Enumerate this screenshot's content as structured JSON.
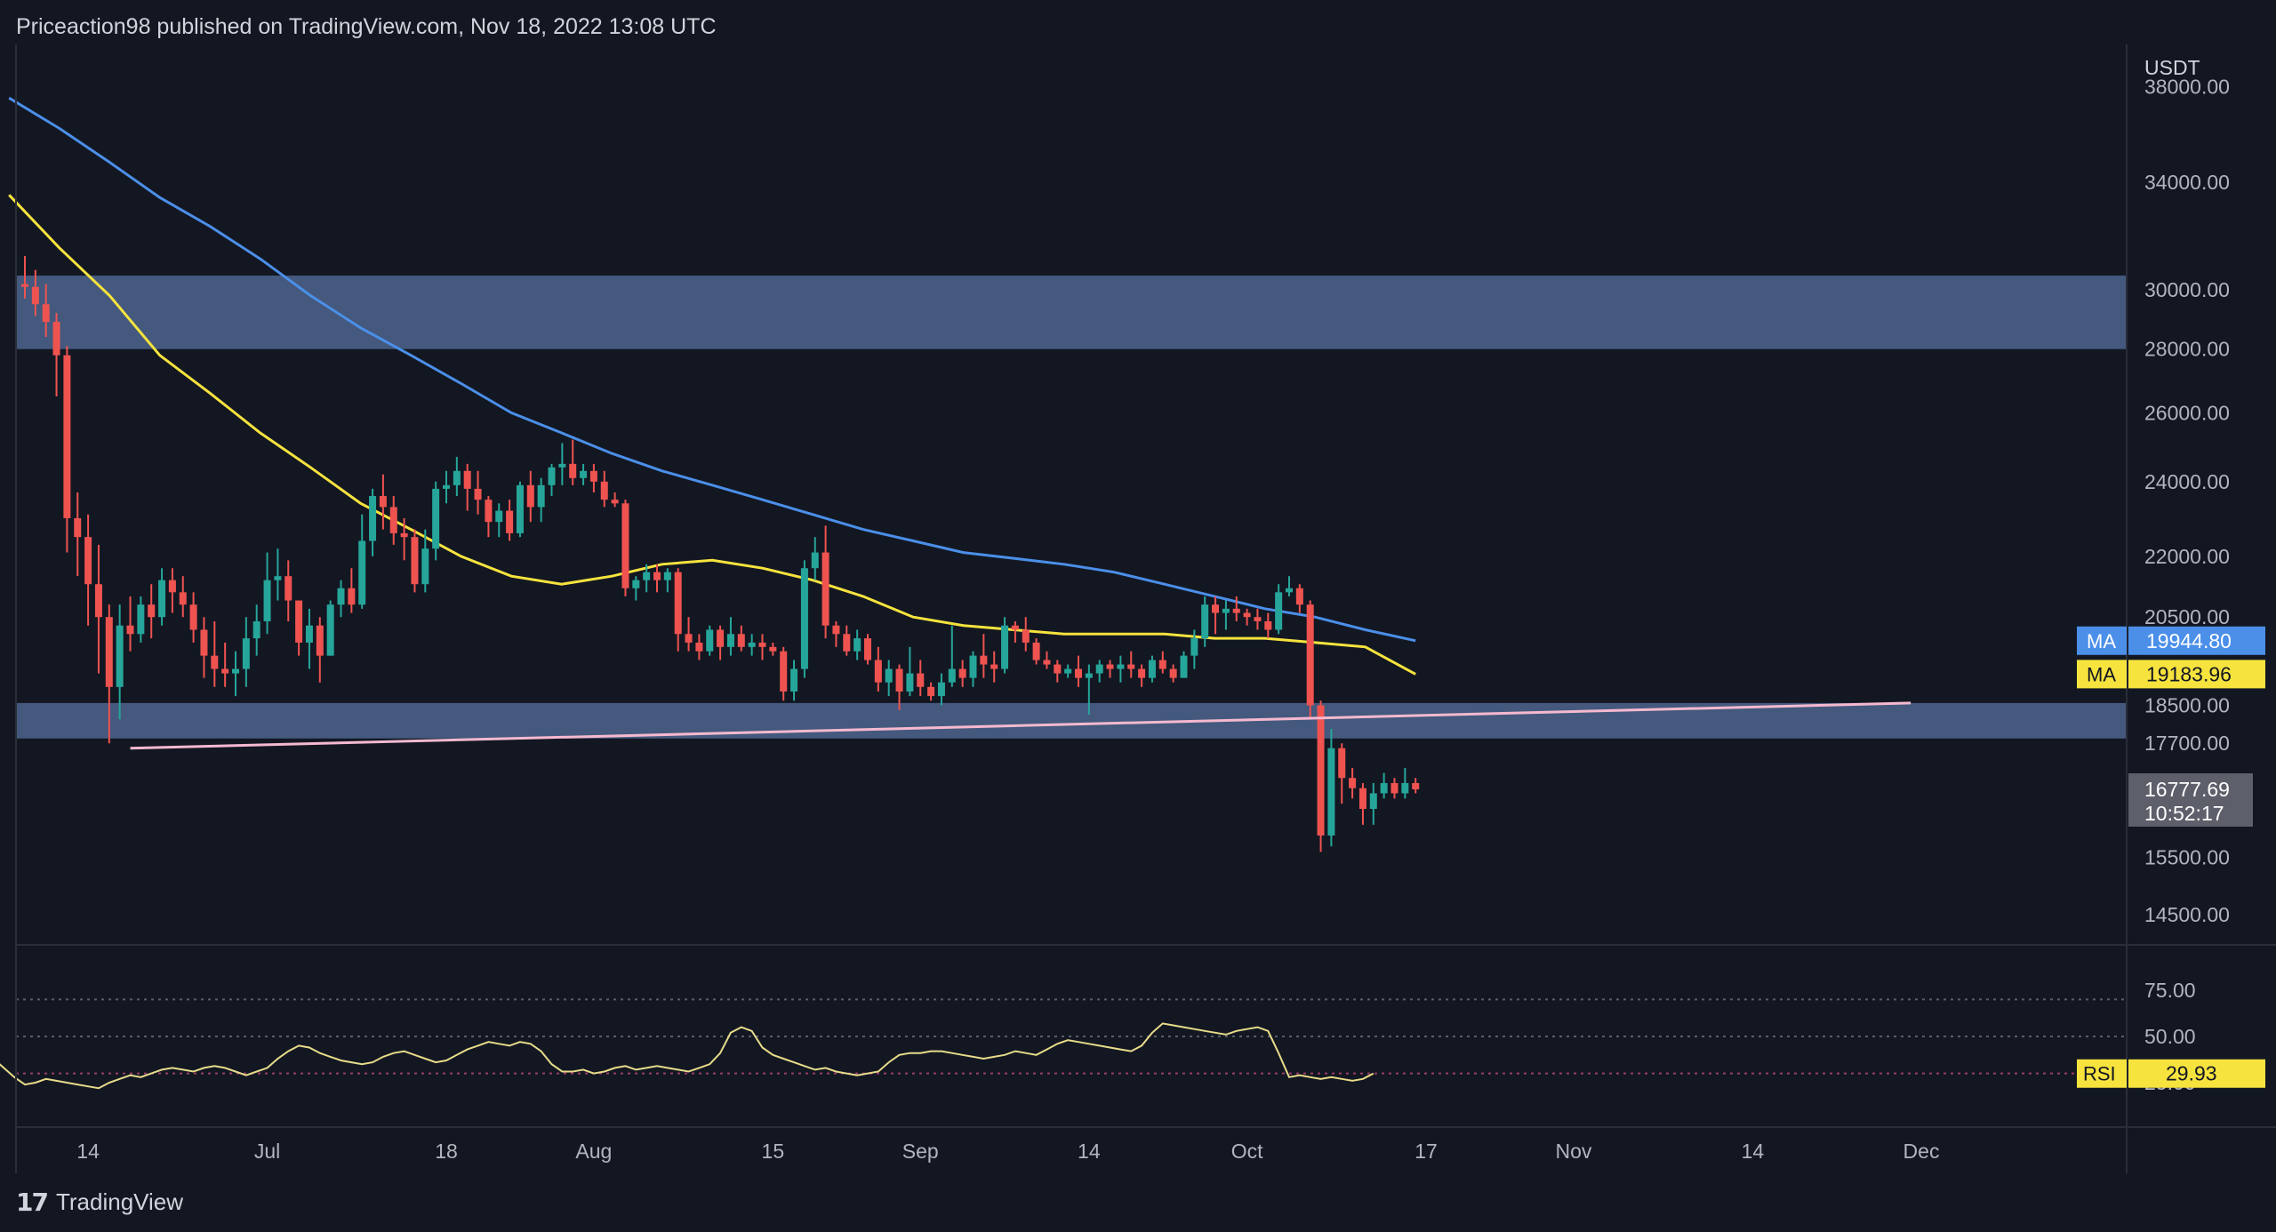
{
  "header": {
    "publisher": "Priceaction98 published on TradingView.com, Nov 18, 2022 13:08 UTC"
  },
  "footer": {
    "logo_text": "TradingView"
  },
  "colors": {
    "background": "#131722",
    "up_candle": "#26a69a",
    "down_candle": "#ef5350",
    "ma_blue": "#4b8fe9",
    "ma_yellow": "#f6e33e",
    "zone": "#4a6187",
    "trendline": "#f5b9d0",
    "rsi_line": "#e8dc8a"
  },
  "chart_data": {
    "type": "candlestick",
    "currency_label": "USDT",
    "y_axis_ticks": [
      "38000.00",
      "34000.00",
      "30000.00",
      "28000.00",
      "26000.00",
      "24000.00",
      "22000.00",
      "20500.00",
      "18500.00",
      "17700.00",
      "15500.00",
      "14500.00"
    ],
    "x_axis_ticks": [
      "14",
      "Jul",
      "18",
      "Aug",
      "15",
      "Sep",
      "14",
      "Oct",
      "17",
      "Nov",
      "14",
      "Dec"
    ],
    "candles_ohlc_daily_from_Jun_8_2022": [
      [
        30200,
        31200,
        29700,
        30100
      ],
      [
        30100,
        30700,
        29100,
        29500
      ],
      [
        29500,
        30200,
        28400,
        28900
      ],
      [
        28900,
        29200,
        26500,
        27800
      ],
      [
        27800,
        28100,
        22100,
        23000
      ],
      [
        23000,
        23700,
        21500,
        22500
      ],
      [
        22500,
        23100,
        20300,
        21300
      ],
      [
        21300,
        22300,
        19200,
        20500
      ],
      [
        20500,
        20800,
        17700,
        18900
      ],
      [
        18900,
        20800,
        18200,
        20300
      ],
      [
        20300,
        21000,
        19700,
        20100
      ],
      [
        20100,
        21000,
        19900,
        20800
      ],
      [
        20800,
        21300,
        20000,
        20500
      ],
      [
        20500,
        21700,
        20300,
        21400
      ],
      [
        21400,
        21700,
        20600,
        21100
      ],
      [
        21100,
        21500,
        20500,
        20800
      ],
      [
        20800,
        21100,
        19900,
        20200
      ],
      [
        20200,
        20500,
        19100,
        19600
      ],
      [
        19600,
        20400,
        18900,
        19300
      ],
      [
        19300,
        19900,
        18900,
        19200
      ],
      [
        19200,
        19700,
        18700,
        19300
      ],
      [
        19300,
        20500,
        18900,
        20000
      ],
      [
        20000,
        20800,
        19600,
        20400
      ],
      [
        20400,
        22100,
        20100,
        21400
      ],
      [
        21400,
        22200,
        20900,
        21500
      ],
      [
        21500,
        21900,
        20400,
        20900
      ],
      [
        20900,
        20900,
        19600,
        19900
      ],
      [
        19900,
        20700,
        19300,
        20300
      ],
      [
        20300,
        20500,
        19000,
        19600
      ],
      [
        19600,
        20900,
        19600,
        20800
      ],
      [
        20800,
        21400,
        20500,
        21200
      ],
      [
        21200,
        21700,
        20600,
        20800
      ],
      [
        20800,
        23100,
        20700,
        22400
      ],
      [
        22400,
        23800,
        22000,
        23600
      ],
      [
        23600,
        24200,
        22700,
        23300
      ],
      [
        23300,
        23600,
        22300,
        22600
      ],
      [
        22600,
        23000,
        21900,
        22500
      ],
      [
        22500,
        22700,
        21100,
        21300
      ],
      [
        21300,
        22700,
        21100,
        22200
      ],
      [
        22200,
        24000,
        21900,
        23800
      ],
      [
        23800,
        24300,
        23400,
        23900
      ],
      [
        23900,
        24700,
        23600,
        24300
      ],
      [
        24300,
        24500,
        23200,
        23800
      ],
      [
        23800,
        24300,
        23100,
        23500
      ],
      [
        23500,
        23600,
        22500,
        22900
      ],
      [
        22900,
        23400,
        22500,
        23200
      ],
      [
        23200,
        23500,
        22400,
        22600
      ],
      [
        22600,
        24000,
        22500,
        23900
      ],
      [
        23900,
        24300,
        22900,
        23300
      ],
      [
        23300,
        24100,
        22900,
        23900
      ],
      [
        23900,
        24500,
        23600,
        24400
      ],
      [
        24400,
        25100,
        23900,
        24500
      ],
      [
        24500,
        25200,
        23900,
        24100
      ],
      [
        24100,
        24500,
        23900,
        24300
      ],
      [
        24300,
        24500,
        23700,
        24000
      ],
      [
        24000,
        24300,
        23300,
        23500
      ],
      [
        23500,
        23700,
        23300,
        23400
      ],
      [
        23400,
        23500,
        21000,
        21200
      ],
      [
        21200,
        21500,
        20900,
        21400
      ],
      [
        21400,
        21800,
        21100,
        21600
      ],
      [
        21600,
        21800,
        21100,
        21400
      ],
      [
        21400,
        21700,
        21100,
        21600
      ],
      [
        21600,
        21700,
        19700,
        20100
      ],
      [
        20100,
        20500,
        19700,
        19900
      ],
      [
        19900,
        20100,
        19500,
        19700
      ],
      [
        19700,
        20300,
        19600,
        20200
      ],
      [
        20200,
        20300,
        19500,
        19800
      ],
      [
        19800,
        20500,
        19600,
        20100
      ],
      [
        20100,
        20300,
        19700,
        19800
      ],
      [
        19800,
        20100,
        19600,
        19900
      ],
      [
        19900,
        20100,
        19500,
        19800
      ],
      [
        19800,
        19900,
        19600,
        19700
      ],
      [
        19700,
        19800,
        18600,
        18800
      ],
      [
        18800,
        19500,
        18600,
        19300
      ],
      [
        19300,
        21900,
        19100,
        21700
      ],
      [
        21700,
        22500,
        21400,
        22100
      ],
      [
        22100,
        22800,
        20000,
        20300
      ],
      [
        20300,
        20400,
        19800,
        20100
      ],
      [
        20100,
        20300,
        19600,
        19700
      ],
      [
        19700,
        20200,
        19500,
        20000
      ],
      [
        20000,
        20100,
        19400,
        19500
      ],
      [
        19500,
        19800,
        18800,
        19000
      ],
      [
        19000,
        19500,
        18700,
        19300
      ],
      [
        19300,
        19400,
        18400,
        18800
      ],
      [
        18800,
        19800,
        18700,
        19200
      ],
      [
        19200,
        19500,
        18700,
        18900
      ],
      [
        18900,
        19000,
        18600,
        18700
      ],
      [
        18700,
        19200,
        18500,
        19000
      ],
      [
        19000,
        20300,
        18900,
        19300
      ],
      [
        19300,
        19500,
        18900,
        19100
      ],
      [
        19100,
        19700,
        18900,
        19600
      ],
      [
        19600,
        20100,
        19100,
        19400
      ],
      [
        19400,
        19700,
        19000,
        19300
      ],
      [
        19300,
        20500,
        19200,
        20300
      ],
      [
        20300,
        20400,
        19900,
        20200
      ],
      [
        20200,
        20500,
        19700,
        19900
      ],
      [
        19900,
        20000,
        19400,
        19500
      ],
      [
        19500,
        19700,
        19300,
        19400
      ],
      [
        19400,
        19500,
        19000,
        19200
      ],
      [
        19200,
        19400,
        19100,
        19300
      ],
      [
        19300,
        19600,
        18900,
        19100
      ],
      [
        19100,
        19400,
        18300,
        19200
      ],
      [
        19200,
        19500,
        19000,
        19400
      ],
      [
        19400,
        19500,
        19100,
        19300
      ],
      [
        19300,
        19600,
        19000,
        19400
      ],
      [
        19400,
        19700,
        19100,
        19300
      ],
      [
        19300,
        19400,
        18900,
        19100
      ],
      [
        19100,
        19600,
        19000,
        19500
      ],
      [
        19500,
        19700,
        19200,
        19300
      ],
      [
        19300,
        19400,
        19000,
        19100
      ],
      [
        19100,
        19700,
        19100,
        19600
      ],
      [
        19600,
        20200,
        19300,
        20000
      ],
      [
        20000,
        21000,
        19800,
        20800
      ],
      [
        20800,
        21000,
        20100,
        20600
      ],
      [
        20600,
        20900,
        20200,
        20700
      ],
      [
        20700,
        21000,
        20400,
        20600
      ],
      [
        20600,
        20700,
        20300,
        20500
      ],
      [
        20500,
        20700,
        20200,
        20400
      ],
      [
        20400,
        20600,
        20000,
        20200
      ],
      [
        20200,
        21300,
        20100,
        21100
      ],
      [
        21100,
        21500,
        21000,
        21200
      ],
      [
        21200,
        21300,
        20600,
        20800
      ],
      [
        20800,
        20900,
        18200,
        18500
      ],
      [
        18500,
        18600,
        15600,
        15900
      ],
      [
        15900,
        18000,
        15700,
        17600
      ],
      [
        17600,
        17700,
        16500,
        17000
      ],
      [
        17000,
        17200,
        16600,
        16800
      ],
      [
        16800,
        16900,
        16100,
        16400
      ],
      [
        16400,
        16900,
        16100,
        16700
      ],
      [
        16700,
        17100,
        16600,
        16900
      ],
      [
        16900,
        17000,
        16600,
        16700
      ],
      [
        16700,
        17200,
        16600,
        16900
      ],
      [
        16900,
        17000,
        16700,
        16777.69
      ]
    ],
    "series": [
      {
        "name": "MA",
        "last_value": 19944.8,
        "approx_values": [
          37500,
          36200,
          34800,
          33400,
          32300,
          31100,
          29800,
          28700,
          27800,
          26900,
          26000,
          25400,
          24800,
          24300,
          23900,
          23500,
          23100,
          22700,
          22400,
          22100,
          21950,
          21800,
          21600,
          21300,
          21000,
          20700,
          20500,
          20200,
          19944.8
        ]
      },
      {
        "name": "MA",
        "last_value": 19183.96,
        "approx_values": [
          33500,
          31500,
          29800,
          27800,
          26600,
          25400,
          24400,
          23400,
          22700,
          22000,
          21500,
          21300,
          21500,
          21800,
          21900,
          21700,
          21400,
          21000,
          20500,
          20300,
          20200,
          20100,
          20100,
          20100,
          20000,
          20000,
          19900,
          19800,
          19183.96
        ]
      }
    ],
    "current_price": "16777.69",
    "countdown": "10:52:17",
    "zones": [
      {
        "from": 28000,
        "to": 30500
      },
      {
        "from": 17800,
        "to": 18550
      }
    ],
    "trendline": {
      "from_date": "Jun 18",
      "from_price": 17600,
      "to_date": "Dec 4",
      "to_price": 18550
    },
    "rsi": {
      "name": "RSI",
      "value": "29.93",
      "y_axis_ticks": [
        "75.00",
        "50.00",
        "25.00"
      ],
      "levels": [
        70,
        50,
        30
      ],
      "values": [
        44,
        48,
        47,
        45,
        42,
        38,
        33,
        28,
        24,
        25,
        27,
        26,
        25,
        24,
        23,
        22,
        25,
        27,
        29,
        28,
        30,
        32,
        33,
        32,
        31,
        33,
        34,
        33,
        31,
        29,
        31,
        33,
        38,
        42,
        45,
        44,
        41,
        39,
        37,
        36,
        35,
        36,
        39,
        41,
        42,
        40,
        38,
        36,
        37,
        40,
        43,
        45,
        47,
        46,
        45,
        47,
        46,
        42,
        35,
        31,
        31,
        32,
        30,
        31,
        33,
        34,
        32,
        33,
        34,
        33,
        32,
        31,
        33,
        35,
        41,
        52,
        55,
        53,
        44,
        40,
        38,
        36,
        34,
        32,
        33,
        31,
        30,
        29,
        30,
        31,
        36,
        40,
        41,
        41,
        42,
        42,
        41,
        40,
        39,
        38,
        39,
        40,
        42,
        41,
        40,
        43,
        46,
        48,
        47,
        46,
        45,
        44,
        43,
        42,
        45,
        52,
        57,
        56,
        55,
        54,
        53,
        52,
        51,
        53,
        54,
        55,
        53,
        41,
        28,
        29,
        28,
        27,
        28,
        27,
        26,
        27,
        29.93
      ]
    }
  }
}
